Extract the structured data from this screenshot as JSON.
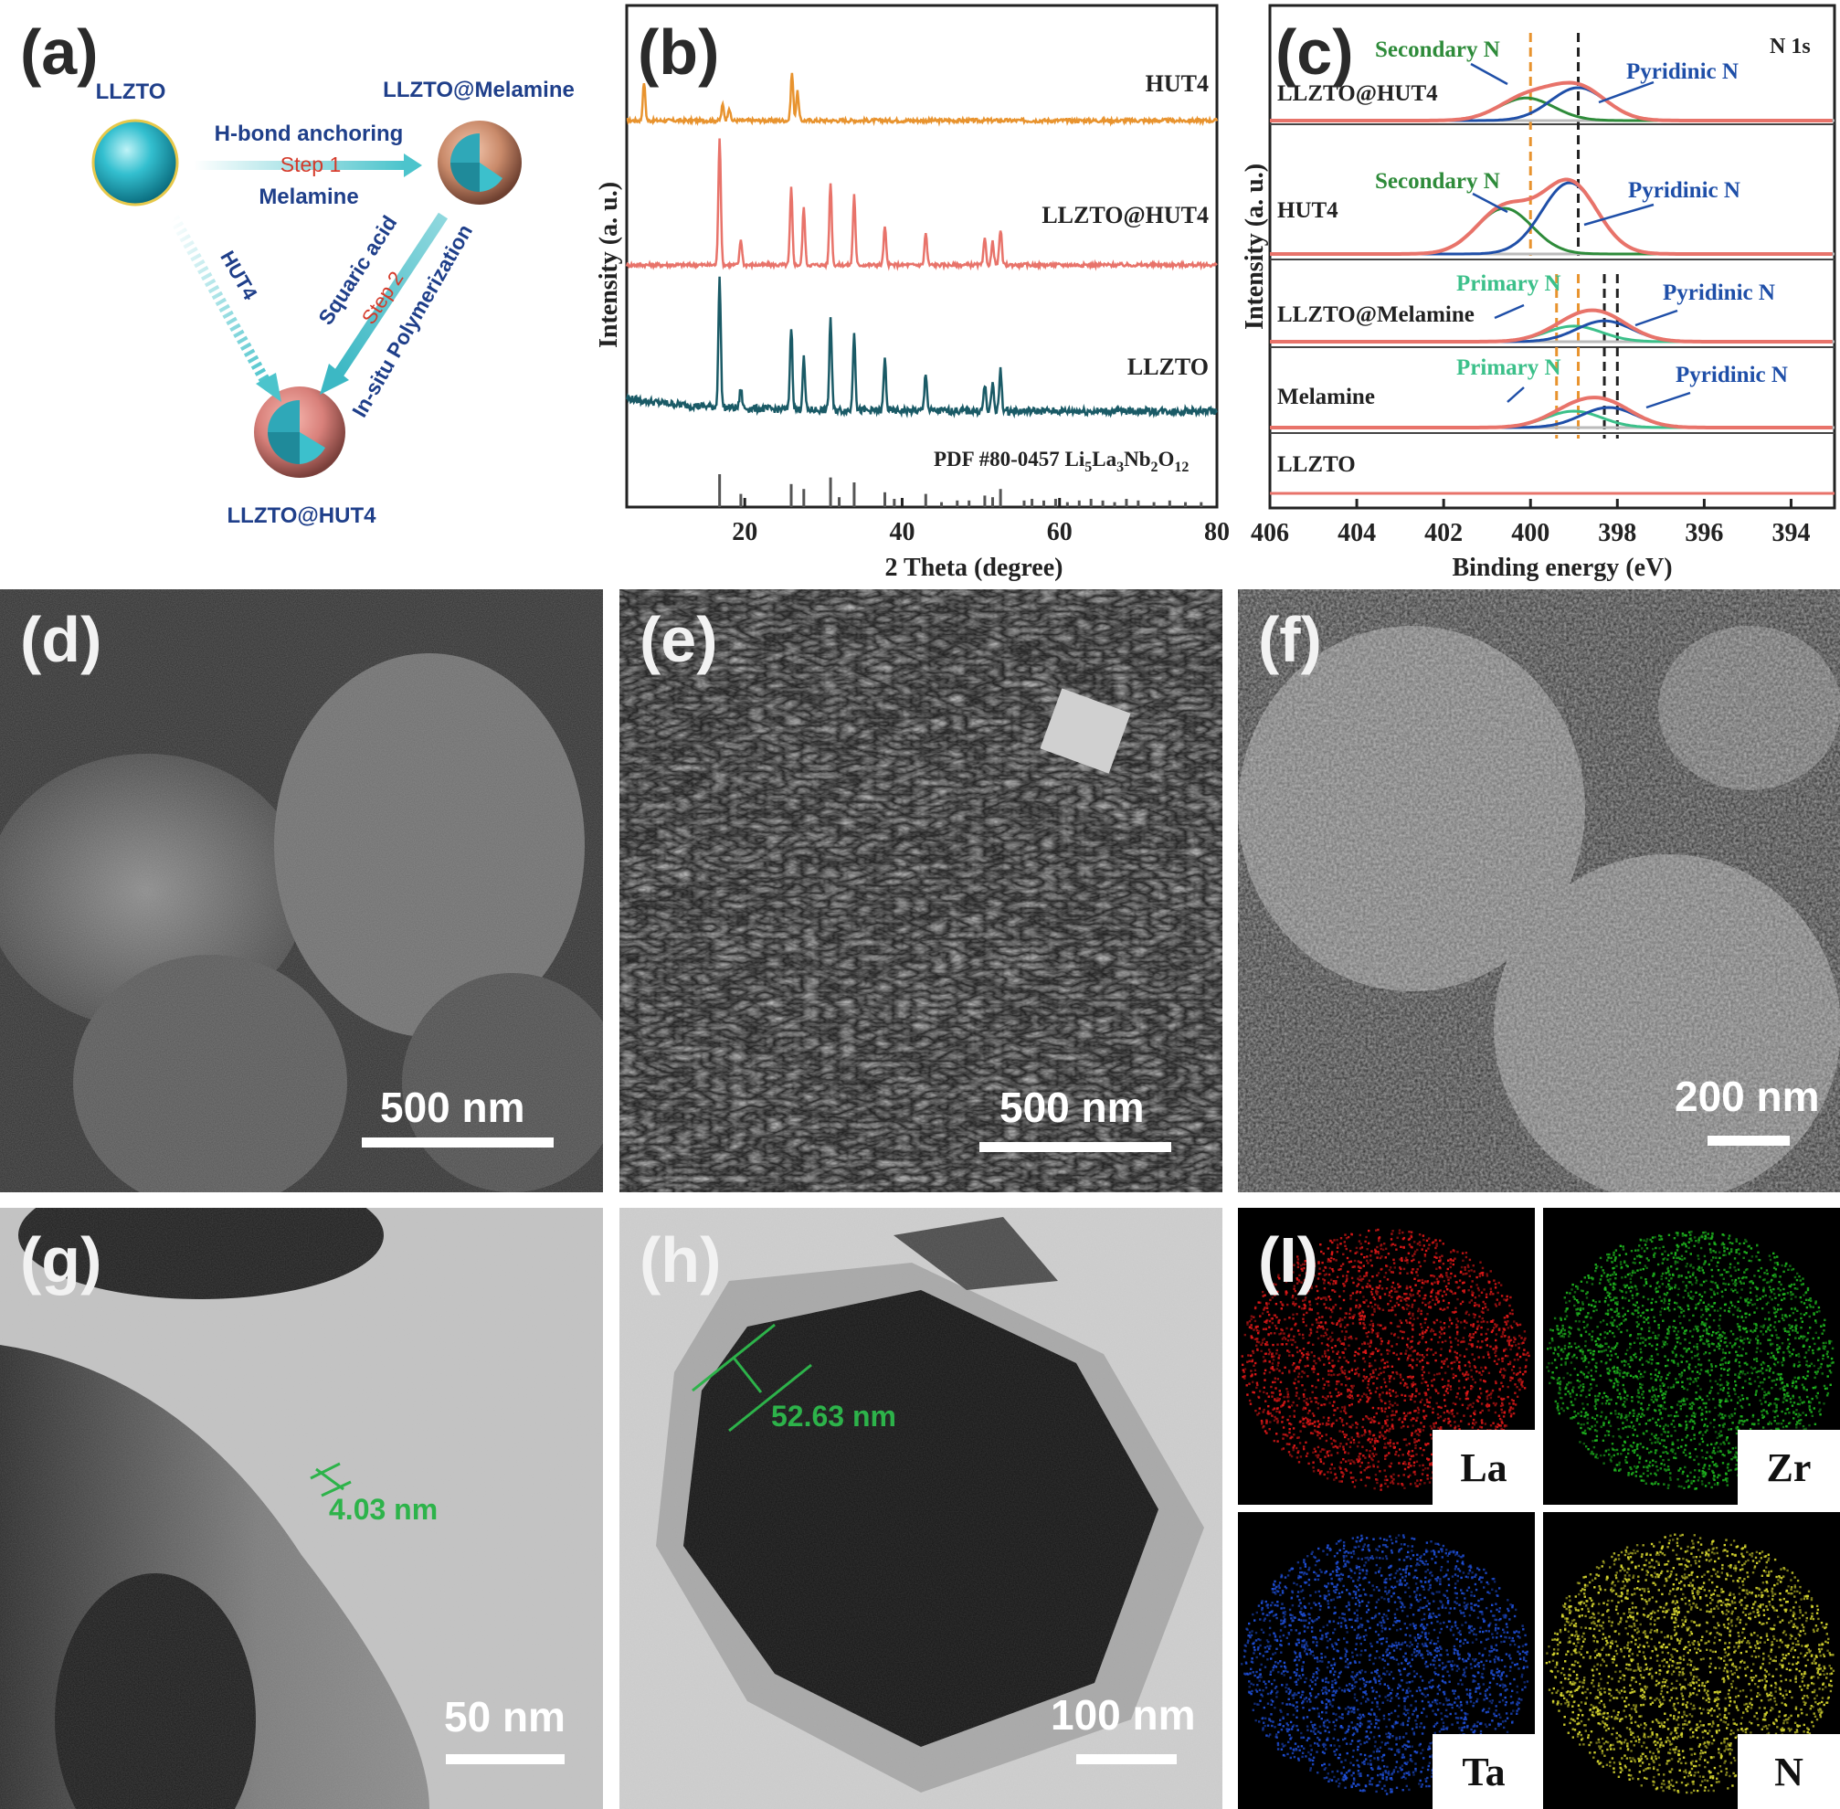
{
  "panel_labels": {
    "a": "(a)",
    "b": "(b)",
    "c": "(c)",
    "d": "(d)",
    "e": "(e)",
    "f": "(f)",
    "g": "(g)",
    "h": "(h)",
    "i": "(I)"
  },
  "scheme": {
    "llzto": "LLZTO",
    "llzto_melamine": "LLZTO@Melamine",
    "llzto_hut4": "LLZTO@HUT4",
    "step1_top": "H-bond anchoring",
    "step1_mid": "Step 1",
    "step1_bottom": "Melamine",
    "hut4_route": "HUT4",
    "step2_top": "Squaric acid",
    "step2_mid": "Step 2",
    "step2_bottom": "In-situ Polymerization",
    "colors": {
      "sphere": "#2bb8c8",
      "shell": "#c98a6a",
      "arrow": "#5cc6cc",
      "text": "#1f3f8a",
      "step": "#d43a2a"
    }
  },
  "chart_data": [
    {
      "type": "line",
      "panel": "b",
      "xlabel": "2 Theta (degree)",
      "ylabel": "Intensity (a. u.)",
      "xlim": [
        5,
        80
      ],
      "xticks": [
        20,
        40,
        60,
        80
      ],
      "series": [
        {
          "name": "HUT4",
          "color": "#e8932e",
          "peaks": [
            {
              "x": 7.2,
              "h": 0.6
            },
            {
              "x": 17.2,
              "h": 0.25
            },
            {
              "x": 18.0,
              "h": 0.2
            },
            {
              "x": 26.0,
              "h": 0.75
            },
            {
              "x": 26.7,
              "h": 0.45
            }
          ]
        },
        {
          "name": "LLZTO@HUT4",
          "color": "#e8736a",
          "peaks": [
            {
              "x": 16.8,
              "h": 1.0
            },
            {
              "x": 19.5,
              "h": 0.2
            },
            {
              "x": 25.9,
              "h": 0.6
            },
            {
              "x": 27.5,
              "h": 0.45
            },
            {
              "x": 30.9,
              "h": 0.65
            },
            {
              "x": 33.9,
              "h": 0.55
            },
            {
              "x": 37.8,
              "h": 0.3
            },
            {
              "x": 43.0,
              "h": 0.25
            },
            {
              "x": 50.5,
              "h": 0.2
            },
            {
              "x": 51.5,
              "h": 0.18
            },
            {
              "x": 52.5,
              "h": 0.28
            }
          ]
        },
        {
          "name": "LLZTO",
          "color": "#1a5a66",
          "peaks": [
            {
              "x": 16.8,
              "h": 1.0
            },
            {
              "x": 19.5,
              "h": 0.15
            },
            {
              "x": 25.9,
              "h": 0.65
            },
            {
              "x": 27.5,
              "h": 0.4
            },
            {
              "x": 30.9,
              "h": 0.72
            },
            {
              "x": 33.9,
              "h": 0.62
            },
            {
              "x": 37.8,
              "h": 0.4
            },
            {
              "x": 43.0,
              "h": 0.3
            },
            {
              "x": 50.5,
              "h": 0.2
            },
            {
              "x": 51.5,
              "h": 0.22
            },
            {
              "x": 52.5,
              "h": 0.32
            }
          ]
        }
      ],
      "reference": {
        "label_prefix": "PDF #80-0457 ",
        "formula": [
          {
            "t": "Li"
          },
          {
            "t": "5",
            "sub": true
          },
          {
            "t": "La"
          },
          {
            "t": "3",
            "sub": true
          },
          {
            "t": "Nb"
          },
          {
            "t": "2",
            "sub": true
          },
          {
            "t": "O"
          },
          {
            "t": "12",
            "sub": true
          }
        ],
        "sticks": [
          [
            16.8,
            1.0
          ],
          [
            19.5,
            0.4
          ],
          [
            25.9,
            0.7
          ],
          [
            27.5,
            0.55
          ],
          [
            30.9,
            0.9
          ],
          [
            32.0,
            0.3
          ],
          [
            33.9,
            0.75
          ],
          [
            37.8,
            0.45
          ],
          [
            39.0,
            0.25
          ],
          [
            43.0,
            0.4
          ],
          [
            45.0,
            0.15
          ],
          [
            47.0,
            0.2
          ],
          [
            48.5,
            0.2
          ],
          [
            50.5,
            0.35
          ],
          [
            51.5,
            0.3
          ],
          [
            52.5,
            0.55
          ],
          [
            55.5,
            0.2
          ],
          [
            56.5,
            0.25
          ],
          [
            58.0,
            0.2
          ],
          [
            59.5,
            0.25
          ],
          [
            61.0,
            0.15
          ],
          [
            62.5,
            0.2
          ],
          [
            64.0,
            0.25
          ],
          [
            65.5,
            0.2
          ],
          [
            67.0,
            0.15
          ],
          [
            68.5,
            0.25
          ],
          [
            70.0,
            0.2
          ],
          [
            72.0,
            0.15
          ],
          [
            74.0,
            0.2
          ],
          [
            76.0,
            0.15
          ],
          [
            78.0,
            0.15
          ]
        ]
      }
    },
    {
      "type": "line",
      "panel": "c",
      "xlabel": "Binding energy (eV)",
      "ylabel": "Intensity (a. u.)",
      "xlim": [
        406,
        393
      ],
      "xticks": [
        406,
        404,
        402,
        400,
        398,
        396,
        394
      ],
      "corner_label": "N 1s",
      "spectra": [
        {
          "name": "LLZTO@HUT4",
          "annotations": [
            "Secondary N",
            "Pyridinic N"
          ]
        },
        {
          "name": "HUT4",
          "annotations": [
            "Secondary N",
            "Pyridinic N"
          ]
        },
        {
          "name": "LLZTO@Melamine",
          "annotations": [
            "Primary N",
            "Pyridinic N"
          ]
        },
        {
          "name": "Melamine",
          "annotations": [
            "Primary N",
            "Pyridinic N"
          ]
        },
        {
          "name": "LLZTO",
          "annotations": []
        }
      ],
      "colors": {
        "envelope": "#e8736a",
        "pyridinic": "#1f4fa8",
        "secondary": "#2e8b3a",
        "primary": "#3cc08a",
        "baseline": "#bbbbbb",
        "orange_dash": "#e8932e",
        "black_dash": "#222222",
        "annot_green": "#2e8b3a",
        "annot_primary": "#3cc08a",
        "annot_blue": "#1f4fa8"
      }
    }
  ],
  "images": {
    "d": {
      "scale": "500 nm"
    },
    "e": {
      "scale": "500 nm"
    },
    "f": {
      "scale": "200 nm"
    },
    "g": {
      "scale": "50 nm",
      "measure": "4.03 nm"
    },
    "h": {
      "scale": "100 nm",
      "measure": "52.63 nm"
    }
  },
  "eds_maps": [
    {
      "element": "La",
      "color": "#e01818"
    },
    {
      "element": "Zr",
      "color": "#1fb81f"
    },
    {
      "element": "Ta",
      "color": "#1f4fd8"
    },
    {
      "element": "N",
      "color": "#d8d830"
    }
  ]
}
